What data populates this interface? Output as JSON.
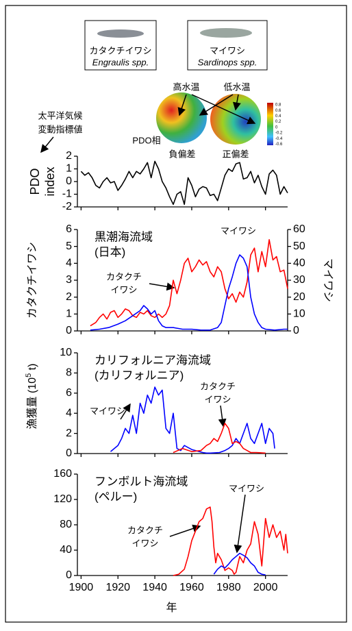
{
  "figure": {
    "fish": [
      {
        "name": "カタクチイワシ",
        "latin": "Engraulis spp."
      },
      {
        "name": "マイワシ",
        "latin": "Sardinops spp."
      }
    ],
    "warm": "高水温",
    "cold": "低水温",
    "pdo_caption": [
      "太平洋気候",
      "変動指標値"
    ],
    "phase": "PDO相",
    "negative": "負偏差",
    "positive": "正偏差",
    "colorbar_labels": [
      "0.8",
      "0.6",
      "0.4",
      "0.2",
      "0",
      "-0.2",
      "-0.4",
      "-0.6"
    ]
  },
  "chart_data": [
    {
      "type": "line",
      "y_label": [
        "PDO",
        "index"
      ],
      "xlim": [
        1898,
        2012
      ],
      "ylim": [
        -2,
        2
      ],
      "yticks": [
        -2,
        -1,
        0,
        1,
        2
      ],
      "series": [
        {
          "color": "#000000",
          "x": [
            1900,
            1902,
            1904,
            1906,
            1908,
            1910,
            1912,
            1914,
            1916,
            1918,
            1920,
            1922,
            1924,
            1926,
            1928,
            1930,
            1932,
            1934,
            1936,
            1938,
            1940,
            1942,
            1944,
            1946,
            1948,
            1950,
            1952,
            1954,
            1956,
            1958,
            1960,
            1962,
            1964,
            1966,
            1968,
            1970,
            1972,
            1974,
            1976,
            1978,
            1980,
            1982,
            1984,
            1986,
            1988,
            1990,
            1992,
            1994,
            1996,
            1998,
            2000,
            2002,
            2004,
            2006,
            2008,
            2010,
            2012
          ],
          "values": [
            0.8,
            0.5,
            0.7,
            0.3,
            -0.3,
            -0.5,
            0.0,
            0.3,
            -0.1,
            0.0,
            -0.7,
            -0.3,
            0.2,
            0.8,
            0.3,
            0.8,
            0.6,
            1.0,
            1.5,
            0.3,
            1.6,
            1.0,
            0.0,
            -0.5,
            -1.2,
            -1.8,
            -1.0,
            -0.8,
            -1.8,
            0.3,
            -0.3,
            -1.2,
            -0.6,
            -0.4,
            -0.5,
            -1.1,
            -1.0,
            -1.5,
            -0.5,
            0.5,
            1.0,
            0.8,
            1.4,
            1.5,
            0.2,
            0.3,
            0.8,
            -0.1,
            0.5,
            -0.4,
            -1.0,
            0.6,
            0.9,
            0.5,
            -1.0,
            -0.4,
            -0.9
          ]
        }
      ]
    },
    {
      "type": "line",
      "title": [
        "黒潮海流域",
        "(日本)"
      ],
      "y_label": "カタクチイワシ",
      "y_label_color": "#ff0000",
      "y2_label": "マイワシ",
      "y2_label_color": "#0000ff",
      "xlim": [
        1898,
        2012
      ],
      "ylim": [
        0,
        6
      ],
      "yticks": [
        0,
        1,
        2,
        3,
        4,
        5,
        6
      ],
      "y2lim": [
        0,
        60
      ],
      "y2ticks": [
        0,
        10,
        20,
        30,
        40,
        50,
        60
      ],
      "annotations": [
        {
          "text": [
            "カタクチ",
            "イワシ"
          ],
          "color": "#ff0000"
        },
        {
          "text": [
            "マイワシ"
          ],
          "color": "#0000ff"
        }
      ],
      "series": [
        {
          "color": "#ff0000",
          "x": [
            1905,
            1908,
            1910,
            1912,
            1914,
            1916,
            1918,
            1920,
            1922,
            1924,
            1926,
            1928,
            1930,
            1932,
            1934,
            1936,
            1938,
            1940,
            1942,
            1944,
            1946,
            1948,
            1950,
            1952,
            1954,
            1956,
            1958,
            1960,
            1962,
            1964,
            1966,
            1968,
            1970,
            1972,
            1974,
            1976,
            1978,
            1980,
            1982,
            1984,
            1986,
            1988,
            1990,
            1992,
            1994,
            1996,
            1998,
            2000,
            2002,
            2004,
            2006,
            2008,
            2010,
            2012
          ],
          "values": [
            0.3,
            0.5,
            0.8,
            1.0,
            0.7,
            1.1,
            1.2,
            0.8,
            1.0,
            1.3,
            1.2,
            0.9,
            0.8,
            1.1,
            1.0,
            1.2,
            0.9,
            0.8,
            1.0,
            0.8,
            1.0,
            1.5,
            3.0,
            2.2,
            3.0,
            4.0,
            4.3,
            3.5,
            3.8,
            4.2,
            3.9,
            4.1,
            3.5,
            3.2,
            3.8,
            3.5,
            2.5,
            1.9,
            2.2,
            1.7,
            2.3,
            2.0,
            2.9,
            4.5,
            4.9,
            3.5,
            4.7,
            3.8,
            5.4,
            4.2,
            4.4,
            3.5,
            3.6,
            2.5
          ]
        },
        {
          "color": "#0000ff",
          "axis": "y2",
          "x": [
            1905,
            1910,
            1915,
            1920,
            1924,
            1928,
            1932,
            1934,
            1936,
            1938,
            1940,
            1942,
            1944,
            1946,
            1950,
            1955,
            1960,
            1965,
            1970,
            1974,
            1976,
            1978,
            1980,
            1982,
            1984,
            1986,
            1988,
            1990,
            1992,
            1994,
            1996,
            1998,
            2000,
            2005,
            2010,
            2012
          ],
          "values": [
            0.5,
            1,
            2,
            4,
            6,
            9,
            12,
            15,
            13,
            10,
            12,
            6,
            3,
            2,
            2,
            1,
            1,
            0.5,
            0.5,
            2,
            5,
            15,
            25,
            32,
            40,
            45,
            43,
            38,
            20,
            10,
            5,
            2,
            1,
            0.5,
            1,
            1
          ]
        }
      ]
    },
    {
      "type": "line",
      "title": [
        "カリフォルニア海流域",
        "(カリフォルニア)"
      ],
      "y_label": [
        "漁獲量 (10",
        "5",
        " t)"
      ],
      "xlim": [
        1898,
        2012
      ],
      "ylim": [
        0,
        10
      ],
      "yticks": [
        0,
        2,
        4,
        6,
        8,
        10
      ],
      "annotations": [
        {
          "text": [
            "マイワシ"
          ],
          "color": "#0000ff"
        },
        {
          "text": [
            "カタクチ",
            "イワシ"
          ],
          "color": "#ff0000"
        }
      ],
      "series": [
        {
          "color": "#0000ff",
          "x": [
            1916,
            1918,
            1920,
            1922,
            1924,
            1926,
            1928,
            1930,
            1932,
            1934,
            1936,
            1938,
            1940,
            1942,
            1944,
            1946,
            1948,
            1950,
            1952,
            1954,
            1956,
            1958,
            1960,
            1962,
            1964,
            1966,
            1968,
            1970,
            1975,
            1978,
            1980,
            1982,
            1984,
            1986,
            1988,
            1990,
            1992,
            1994,
            1996,
            1998,
            2000,
            2002,
            2004,
            2005
          ],
          "values": [
            0.2,
            0.5,
            0.8,
            1.5,
            2.5,
            2.0,
            3.8,
            2.0,
            5.0,
            4.0,
            5.8,
            5.0,
            6.6,
            5.8,
            6.3,
            2.5,
            2.0,
            4.0,
            0.5,
            0.3,
            0.8,
            0.6,
            0.4,
            0.3,
            0.2,
            0.1,
            0.05,
            0.05,
            0.1,
            0.3,
            0.5,
            0.8,
            1.5,
            1.0,
            2.0,
            3.0,
            1.5,
            1.0,
            2.0,
            3.0,
            1.0,
            2.5,
            2.0,
            0.5
          ]
        },
        {
          "color": "#ff0000",
          "x": [
            1950,
            1955,
            1960,
            1965,
            1968,
            1970,
            1972,
            1974,
            1976,
            1978,
            1980,
            1982,
            1984,
            1986,
            1988,
            1990,
            1992,
            1995,
            2000
          ],
          "values": [
            0.1,
            0.5,
            0.2,
            0.3,
            0.8,
            1.0,
            1.5,
            1.2,
            2.0,
            3.0,
            2.5,
            1.0,
            1.2,
            1.0,
            0.5,
            0.3,
            0.1,
            0.1,
            0.05
          ]
        }
      ]
    },
    {
      "type": "line",
      "title": [
        "フンボルト海流域",
        "(ペルー)"
      ],
      "x_label": "年",
      "xlim": [
        1898,
        2012
      ],
      "xticks": [
        1900,
        1920,
        1940,
        1960,
        1980,
        2000
      ],
      "ylim": [
        0,
        160
      ],
      "yticks": [
        0,
        40,
        80,
        120,
        160
      ],
      "annotations": [
        {
          "text": [
            "マイワシ"
          ],
          "color": "#0000ff"
        },
        {
          "text": [
            "カタクチ",
            "イワシ"
          ],
          "color": "#ff0000"
        }
      ],
      "series": [
        {
          "color": "#ff0000",
          "x": [
            1950,
            1953,
            1956,
            1958,
            1960,
            1962,
            1964,
            1966,
            1968,
            1970,
            1971,
            1972,
            1973,
            1974,
            1975,
            1976,
            1978,
            1980,
            1982,
            1983,
            1984,
            1986,
            1988,
            1990,
            1992,
            1994,
            1996,
            1998,
            2000,
            2002,
            2004,
            2006,
            2008,
            2010,
            2011,
            2012
          ],
          "values": [
            0,
            2,
            10,
            30,
            55,
            70,
            85,
            90,
            105,
            108,
            85,
            45,
            20,
            35,
            30,
            25,
            8,
            12,
            8,
            2,
            5,
            30,
            20,
            40,
            50,
            85,
            65,
            15,
            90,
            60,
            80,
            60,
            70,
            40,
            65,
            35
          ]
        },
        {
          "color": "#0000ff",
          "x": [
            1972,
            1974,
            1976,
            1978,
            1980,
            1982,
            1984,
            1986,
            1988,
            1990,
            1992,
            1994,
            1996,
            1998,
            2000
          ],
          "values": [
            2,
            10,
            15,
            12,
            18,
            25,
            30,
            35,
            32,
            28,
            20,
            15,
            5,
            2,
            1
          ]
        }
      ]
    }
  ]
}
